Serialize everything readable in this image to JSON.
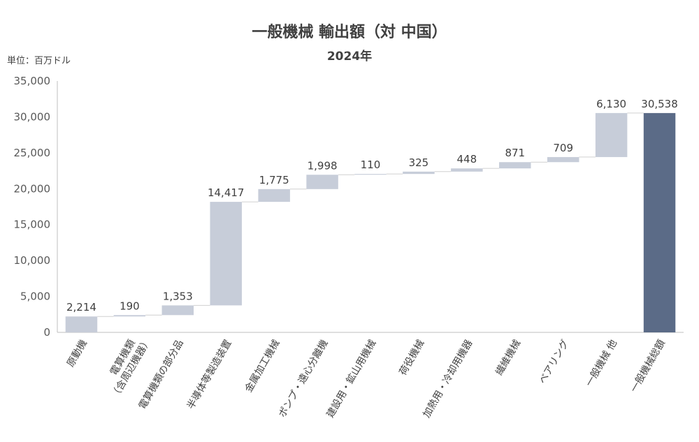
{
  "chart_data": {
    "type": "bar",
    "subtype": "waterfall",
    "title": "一般機械 輸出額（対 中国）",
    "subtitle": "2024年",
    "unit_label": "単位：百万ドル",
    "categories": [
      [
        "原動機"
      ],
      [
        "電算機類",
        "（含周辺機器）"
      ],
      [
        "電算機類の部分品"
      ],
      [
        "半導体等製造装置"
      ],
      [
        "金属加工機械"
      ],
      [
        "ポンプ・遠心分離機"
      ],
      [
        "建設用・鉱山用機械"
      ],
      [
        "荷役機械"
      ],
      [
        "加熱用・冷却用機器"
      ],
      [
        "繊維機械"
      ],
      [
        "ベアリング"
      ],
      [
        "一般機械 他"
      ],
      [
        "一般機械総額"
      ]
    ],
    "values": [
      2214,
      190,
      1353,
      14417,
      1775,
      1998,
      110,
      325,
      448,
      871,
      709,
      6130,
      30538
    ],
    "data_labels": [
      "2,214",
      "190",
      "1,353",
      "14,417",
      "1,775",
      "1,998",
      "110",
      "325",
      "448",
      "871",
      "709",
      "6,130",
      "30,538"
    ],
    "total_index": 12,
    "yticks": [
      "0",
      "5,000",
      "10,000",
      "15,000",
      "20,000",
      "25,000",
      "30,000",
      "35,000"
    ],
    "ylim": [
      0,
      35000
    ],
    "ystep": 5000,
    "grid": false,
    "colors": {
      "increment": "#c7cdd9",
      "total": "#5b6b87",
      "connector": "#d0d0d0",
      "axis": "#bfbfbf"
    }
  }
}
